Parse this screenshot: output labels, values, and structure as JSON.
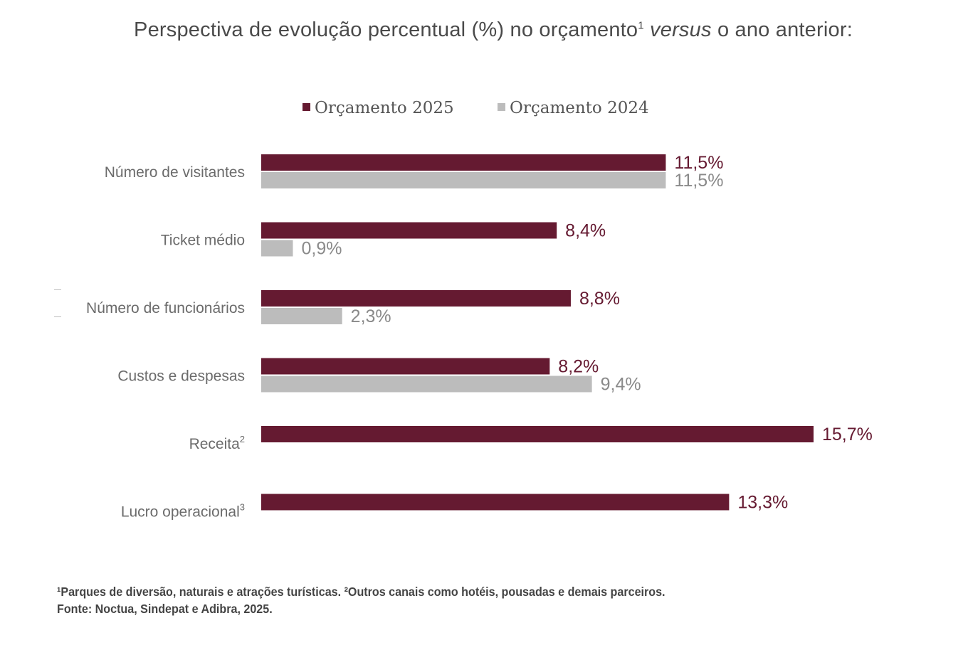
{
  "title": {
    "prefix": "Perspectiva de evolução percentual (%) no orçamento",
    "sup": "1",
    "italic": "versus",
    "suffix": "o ano anterior:"
  },
  "chart_data": {
    "type": "bar",
    "orientation": "horizontal",
    "categories": [
      {
        "label": "Número de visitantes",
        "sup": ""
      },
      {
        "label": "Ticket médio",
        "sup": ""
      },
      {
        "label": "Número de funcionários",
        "sup": ""
      },
      {
        "label": "Custos e despesas",
        "sup": ""
      },
      {
        "label": "Receita",
        "sup": "2"
      },
      {
        "label": "Lucro operacional",
        "sup": "3"
      }
    ],
    "series": [
      {
        "name": "Orçamento 2025",
        "color": "#651a31",
        "values": [
          11.5,
          8.4,
          8.8,
          8.2,
          15.7,
          13.3
        ],
        "labels": [
          "11,5%",
          "8,4%",
          "8,8%",
          "8,2%",
          "15,7%",
          "13,3%"
        ]
      },
      {
        "name": "Orçamento 2024",
        "color": "#bcbcbc",
        "values": [
          11.5,
          0.9,
          2.3,
          9.4,
          null,
          null
        ],
        "labels": [
          "11,5%",
          "0,9%",
          "2,3%",
          "9,4%",
          null,
          null
        ]
      }
    ],
    "legend_position": "top-center",
    "value_label_color_2025": "#651a31",
    "value_label_color_2024": "#8a8a8a"
  },
  "footnote": {
    "line1": "¹Parques de diversão, naturais e atrações turísticas. ²Outros canais como hotéis, pousadas e demais parceiros.",
    "line2": "Fonte: Noctua, Sindepat e Adibra, 2025."
  }
}
